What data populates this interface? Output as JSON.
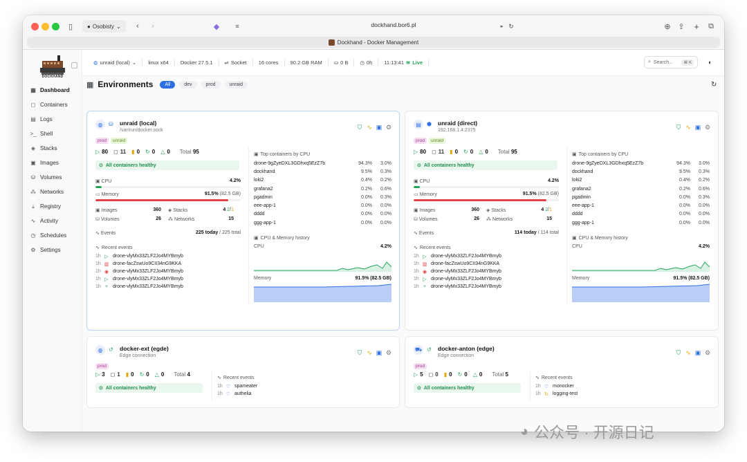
{
  "browser": {
    "profile": "Osobisty",
    "address": "dockhand.bor6.pl",
    "tab_title": "Dockhand - Docker Management"
  },
  "sidebar": {
    "logo_text": "DOCKHAND",
    "items": [
      {
        "label": "Dashboard",
        "icon": "grid-icon"
      },
      {
        "label": "Containers",
        "icon": "box-icon"
      },
      {
        "label": "Logs",
        "icon": "file-icon"
      },
      {
        "label": "Shell",
        "icon": "terminal-icon"
      },
      {
        "label": "Stacks",
        "icon": "layers-icon"
      },
      {
        "label": "Images",
        "icon": "image-icon"
      },
      {
        "label": "Volumes",
        "icon": "database-icon"
      },
      {
        "label": "Networks",
        "icon": "network-icon"
      },
      {
        "label": "Registry",
        "icon": "download-icon"
      },
      {
        "label": "Activity",
        "icon": "activity-icon"
      },
      {
        "label": "Schedules",
        "icon": "clock-icon"
      },
      {
        "label": "Settings",
        "icon": "gear-icon"
      }
    ]
  },
  "topbar": {
    "env": "unraid (local)",
    "os": "linux x64",
    "docker": "Docker 27.5.1",
    "socket": "Socket",
    "cores": "16 cores",
    "ram": "90.2 GB RAM",
    "disk": "0 B",
    "uptime": "0h",
    "time": "11:13:41",
    "live": "Live",
    "search_placeholder": "Search...",
    "search_kbd": "⌘ K"
  },
  "environments": {
    "title": "Environments",
    "filters": [
      "All",
      "dev",
      "prod",
      "unraid"
    ]
  },
  "cards": {
    "local": {
      "name": "unraid (local)",
      "sub": "/var/run/docker.sock",
      "tags": [
        "prod",
        "unraid"
      ],
      "running": "80",
      "stopped": "11",
      "paused": "0",
      "restarting": "0",
      "warnings": "0",
      "total_label": "Total",
      "total": "95",
      "healthy": "All containers healthy",
      "cpu_label": "CPU",
      "cpu": "4.2%",
      "mem_label": "Memory",
      "mem": "91.5%",
      "mem_gb": "(82.5 GB)",
      "cpu_fraction": 0.042,
      "mem_fraction": 0.915,
      "images_label": "Images",
      "images": "360",
      "stacks_label": "Stacks",
      "stacks_a": "4",
      "stacks_b": "2",
      "stacks_c": "1",
      "volumes_label": "Volumes",
      "volumes": "26",
      "networks_label": "Networks",
      "networks": "15",
      "events_label": "Events",
      "events_today": "225 today",
      "events_total": "/ 225 total",
      "recent_label": "Recent events",
      "recent": [
        {
          "t": "1h",
          "icon": "play-icon",
          "name": "drone-vlyMx33ZLF2Jo4MYBmyb"
        },
        {
          "t": "1h",
          "icon": "trash-icon",
          "name": "drone-facZswUo9CII34nG9KKA"
        },
        {
          "t": "1h",
          "icon": "stop-icon",
          "name": "drone-vlyMx33ZLF2Jo4MYBmyb"
        },
        {
          "t": "1h",
          "icon": "play-icon",
          "name": "drone-vlyMx33ZLF2Jo4MYBmyb"
        },
        {
          "t": "1h",
          "icon": "plus-icon",
          "name": "drone-vlyMx33ZLF2Jo4MYBmyb"
        }
      ],
      "top_label": "Top containers by CPU",
      "top": [
        {
          "name": "drone-9gZyeDXL3GDhxq5EzZ7b",
          "cpu": "94.3%",
          "mem": "3.0%"
        },
        {
          "name": "dockhand",
          "cpu": "9.5%",
          "mem": "0.3%"
        },
        {
          "name": "loki2",
          "cpu": "0.4%",
          "mem": "0.2%"
        },
        {
          "name": "grafana2",
          "cpu": "0.2%",
          "mem": "0.6%"
        },
        {
          "name": "pgadmin",
          "cpu": "0.0%",
          "mem": "0.3%"
        },
        {
          "name": "eee-app-1",
          "cpu": "0.0%",
          "mem": "0.0%"
        },
        {
          "name": "dddd",
          "cpu": "0.0%",
          "mem": "0.0%"
        },
        {
          "name": "ggg-app-1",
          "cpu": "0.0%",
          "mem": "0.0%"
        }
      ],
      "history_label": "CPU & Memory history",
      "hist_cpu_label": "CPU",
      "hist_cpu": "4.2%",
      "hist_mem_label": "Memory",
      "hist_mem": "91.5% (82.5 GB)"
    },
    "direct": {
      "name": "unraid (direct)",
      "sub": "192.168.1.4:2375",
      "tags": [
        "prod",
        "unraid"
      ],
      "running": "80",
      "stopped": "11",
      "paused": "0",
      "restarting": "0",
      "warnings": "0",
      "total_label": "Total",
      "total": "95",
      "healthy": "All containers healthy",
      "cpu_label": "CPU",
      "cpu": "4.2%",
      "mem_label": "Memory",
      "mem": "91.5%",
      "mem_gb": "(82.5 GB)",
      "cpu_fraction": 0.042,
      "mem_fraction": 0.915,
      "images_label": "Images",
      "images": "360",
      "stacks_label": "Stacks",
      "stacks_a": "4",
      "stacks_b": "2",
      "stacks_c": "1",
      "volumes_label": "Volumes",
      "volumes": "26",
      "networks_label": "Networks",
      "networks": "15",
      "events_label": "Events",
      "events_today": "114 today",
      "events_total": "/ 114 total",
      "recent_label": "Recent events",
      "recent": [
        {
          "t": "1h",
          "icon": "play-icon",
          "name": "drone-vlyMx33ZLF2Jo4MYBmyb"
        },
        {
          "t": "1h",
          "icon": "trash-icon",
          "name": "drone-facZswUo9CII34nG9KKA"
        },
        {
          "t": "1h",
          "icon": "stop-icon",
          "name": "drone-vlyMx33ZLF2Jo4MYBmyb"
        },
        {
          "t": "1h",
          "icon": "play-icon",
          "name": "drone-vlyMx33ZLF2Jo4MYBmyb"
        },
        {
          "t": "1h",
          "icon": "plus-icon",
          "name": "drone-vlyMx33ZLF2Jo4MYBmyb"
        }
      ],
      "top_label": "Top containers by CPU",
      "top": [
        {
          "name": "drone-9gZyeDXL3GDhxq5EzZ7b",
          "cpu": "94.3%",
          "mem": "3.0%"
        },
        {
          "name": "dockhand",
          "cpu": "9.5%",
          "mem": "0.3%"
        },
        {
          "name": "loki2",
          "cpu": "0.4%",
          "mem": "0.2%"
        },
        {
          "name": "grafana2",
          "cpu": "0.2%",
          "mem": "0.6%"
        },
        {
          "name": "pgadmin",
          "cpu": "0.0%",
          "mem": "0.3%"
        },
        {
          "name": "eee-app-1",
          "cpu": "0.0%",
          "mem": "0.0%"
        },
        {
          "name": "dddd",
          "cpu": "0.0%",
          "mem": "0.0%"
        },
        {
          "name": "ggg-app-1",
          "cpu": "0.0%",
          "mem": "0.0%"
        }
      ],
      "history_label": "CPU & Memory history",
      "hist_cpu_label": "CPU",
      "hist_cpu": "4.2%",
      "hist_mem_label": "Memory",
      "hist_mem": "91.5% (82.5 GB)"
    },
    "ext": {
      "name": "docker-ext (egde)",
      "sub": "Edge connection",
      "tags": [
        "prod"
      ],
      "running": "3",
      "stopped": "1",
      "paused": "0",
      "restarting": "0",
      "warnings": "0",
      "total_label": "Total",
      "total": "4",
      "healthy": "All containers healthy",
      "recent_label": "Recent events",
      "recent": [
        {
          "t": "1h",
          "icon": "heart-icon",
          "name": "spameater"
        },
        {
          "t": "1h",
          "icon": "heart-icon",
          "name": "authelia"
        }
      ]
    },
    "anton": {
      "name": "docker-anton (edge)",
      "sub": "Edge connection",
      "tags": [
        "prod"
      ],
      "running": "5",
      "stopped": "0",
      "paused": "0",
      "restarting": "0",
      "warnings": "0",
      "total_label": "Total",
      "total": "5",
      "healthy": "All containers healthy",
      "recent_label": "Recent events",
      "recent": [
        {
          "t": "1h",
          "icon": "heart-icon",
          "name": "monocker"
        },
        {
          "t": "1h",
          "icon": "restart-icon",
          "name": "logging-test"
        }
      ]
    }
  },
  "colors": {
    "accent": "#2f6fe4",
    "green": "#22a559",
    "red": "#e0424b",
    "amber": "#e0a500"
  },
  "watermark": "公众号 · 开源日记"
}
